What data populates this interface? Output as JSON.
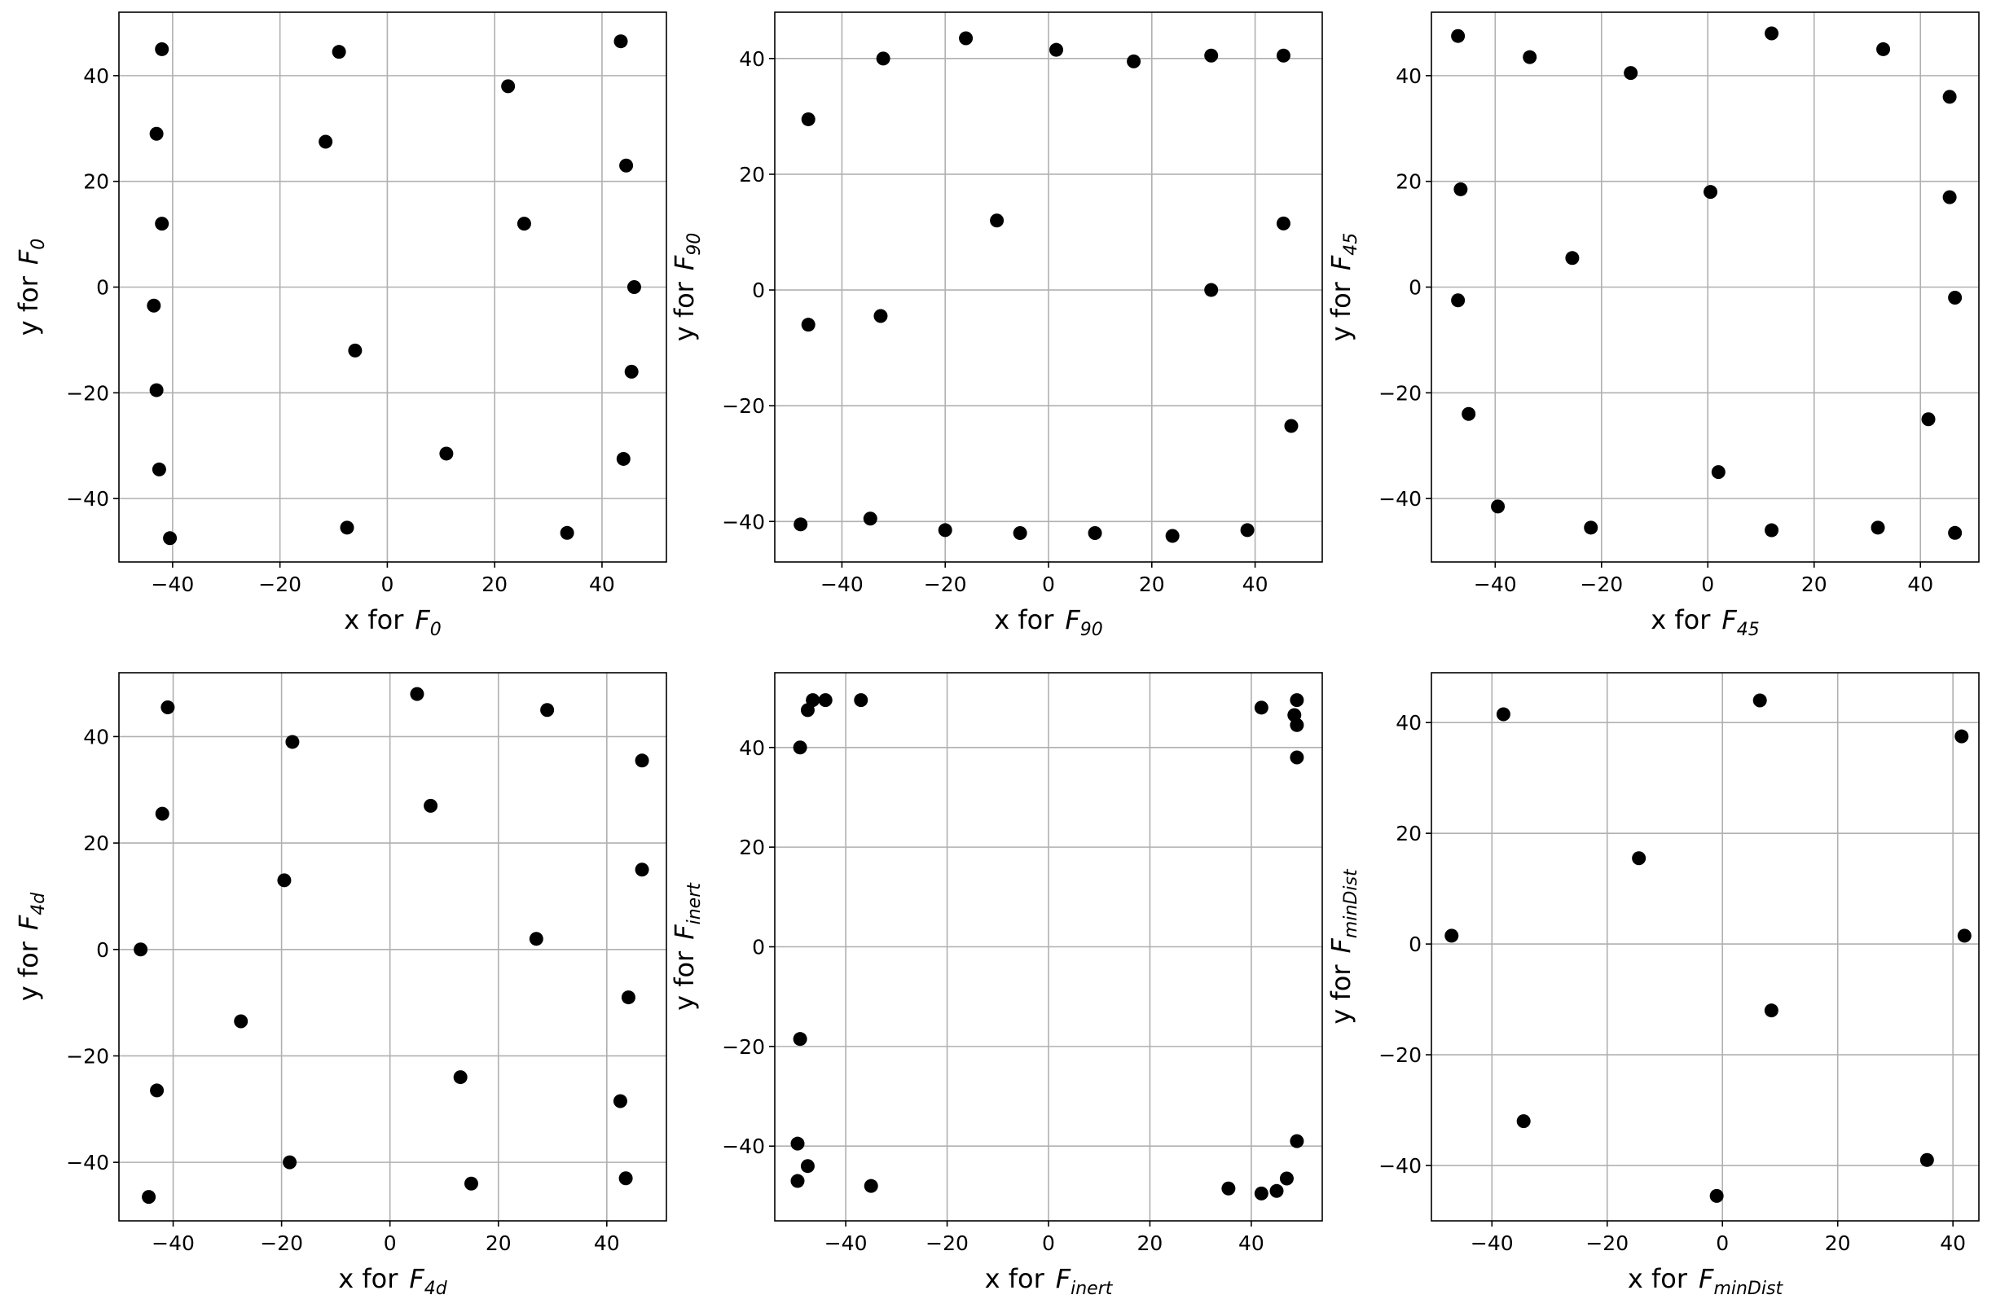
{
  "chart_data": [
    {
      "type": "scatter",
      "xlabel": {
        "text": "x for",
        "sym": "F",
        "sub": "0"
      },
      "ylabel": {
        "text": "y for",
        "sym": "F",
        "sub": "0"
      },
      "xlim": [
        -50,
        52
      ],
      "ylim": [
        -52,
        52
      ],
      "xticks": [
        -40,
        -20,
        0,
        20,
        40
      ],
      "yticks": [
        -40,
        -20,
        0,
        20,
        40
      ],
      "grid": true,
      "marker_color": "#000000",
      "points": [
        [
          -42,
          45
        ],
        [
          -9,
          44.5
        ],
        [
          43.5,
          46.5
        ],
        [
          22.5,
          38
        ],
        [
          -43,
          29
        ],
        [
          -11.5,
          27.5
        ],
        [
          44.5,
          23
        ],
        [
          -42,
          12
        ],
        [
          25.5,
          12
        ],
        [
          46,
          0
        ],
        [
          -43.5,
          -3.5
        ],
        [
          -6,
          -12
        ],
        [
          45.5,
          -16
        ],
        [
          -43,
          -19.5
        ],
        [
          11,
          -31.5
        ],
        [
          44,
          -32.5
        ],
        [
          -42.5,
          -34.5
        ],
        [
          -7.5,
          -45.5
        ],
        [
          33.5,
          -46.5
        ],
        [
          -40.5,
          -47.5
        ]
      ]
    },
    {
      "type": "scatter",
      "xlabel": {
        "text": "x for",
        "sym": "F",
        "sub": "90"
      },
      "ylabel": {
        "text": "y for",
        "sym": "F",
        "sub": "90"
      },
      "xlim": [
        -53,
        53
      ],
      "ylim": [
        -47,
        48
      ],
      "xticks": [
        -40,
        -20,
        0,
        20,
        40
      ],
      "yticks": [
        -40,
        -20,
        0,
        20,
        40
      ],
      "grid": true,
      "marker_color": "#000000",
      "points": [
        [
          -16,
          43.5
        ],
        [
          1.5,
          41.5
        ],
        [
          -32,
          40
        ],
        [
          31.5,
          40.5
        ],
        [
          45.5,
          40.5
        ],
        [
          16.5,
          39.5
        ],
        [
          -46.5,
          29.5
        ],
        [
          -10,
          12
        ],
        [
          45.5,
          11.5
        ],
        [
          31.5,
          0
        ],
        [
          -32.5,
          -4.5
        ],
        [
          -46.5,
          -6
        ],
        [
          47,
          -23.5
        ],
        [
          -34.5,
          -39.5
        ],
        [
          -48,
          -40.5
        ],
        [
          -20,
          -41.5
        ],
        [
          38.5,
          -41.5
        ],
        [
          -5.5,
          -42
        ],
        [
          9,
          -42
        ],
        [
          24,
          -42.5
        ]
      ]
    },
    {
      "type": "scatter",
      "xlabel": {
        "text": "x for",
        "sym": "F",
        "sub": "45"
      },
      "ylabel": {
        "text": "y for",
        "sym": "F",
        "sub": "45"
      },
      "xlim": [
        -52,
        51
      ],
      "ylim": [
        -52,
        52
      ],
      "xticks": [
        -40,
        -20,
        0,
        20,
        40
      ],
      "yticks": [
        -40,
        -20,
        0,
        20,
        40
      ],
      "grid": true,
      "marker_color": "#000000",
      "points": [
        [
          -47,
          47.5
        ],
        [
          12,
          48
        ],
        [
          33,
          45
        ],
        [
          -33.5,
          43.5
        ],
        [
          -14.5,
          40.5
        ],
        [
          45.5,
          36
        ],
        [
          -46.5,
          18.5
        ],
        [
          0.5,
          18
        ],
        [
          45.5,
          17
        ],
        [
          -25.5,
          5.5
        ],
        [
          -47,
          -2.5
        ],
        [
          46.5,
          -2
        ],
        [
          -45,
          -24
        ],
        [
          41.5,
          -25
        ],
        [
          2,
          -35
        ],
        [
          -39.5,
          -41.5
        ],
        [
          -22,
          -45.5
        ],
        [
          12,
          -46
        ],
        [
          32,
          -45.5
        ],
        [
          46.5,
          -46.5
        ]
      ]
    },
    {
      "type": "scatter",
      "xlabel": {
        "text": "x for",
        "sym": "F",
        "sub": "4d"
      },
      "ylabel": {
        "text": "y for",
        "sym": "F",
        "sub": "4d"
      },
      "xlim": [
        -50,
        51
      ],
      "ylim": [
        -51,
        52
      ],
      "xticks": [
        -40,
        -20,
        0,
        20,
        40
      ],
      "yticks": [
        -40,
        -20,
        0,
        20,
        40
      ],
      "grid": true,
      "marker_color": "#000000",
      "points": [
        [
          5,
          48
        ],
        [
          -41,
          45.5
        ],
        [
          29,
          45
        ],
        [
          -18,
          39
        ],
        [
          46.5,
          35.5
        ],
        [
          7.5,
          27
        ],
        [
          -42,
          25.5
        ],
        [
          46.5,
          15
        ],
        [
          -19.5,
          13
        ],
        [
          -46,
          0
        ],
        [
          27,
          2
        ],
        [
          -27.5,
          -13.5
        ],
        [
          44,
          -9
        ],
        [
          13,
          -24
        ],
        [
          -43,
          -26.5
        ],
        [
          42.5,
          -28.5
        ],
        [
          -18.5,
          -40
        ],
        [
          43.5,
          -43
        ],
        [
          15,
          -44
        ],
        [
          -44.5,
          -46.5
        ]
      ]
    },
    {
      "type": "scatter",
      "xlabel": {
        "text": "x for",
        "sym": "F",
        "sub": "inert"
      },
      "ylabel": {
        "text": "y for",
        "sym": "F",
        "sub": "inert"
      },
      "xlim": [
        -54,
        54
      ],
      "ylim": [
        -55,
        55
      ],
      "xticks": [
        -40,
        -20,
        0,
        20,
        40
      ],
      "yticks": [
        -40,
        -20,
        0,
        20,
        40
      ],
      "grid": true,
      "marker_color": "#000000",
      "points": [
        [
          -46.5,
          49.5
        ],
        [
          -44,
          49.5
        ],
        [
          -37,
          49.5
        ],
        [
          -47.5,
          47.5
        ],
        [
          -49,
          40
        ],
        [
          42,
          48
        ],
        [
          49,
          49.5
        ],
        [
          48.5,
          46.5
        ],
        [
          49,
          44.5
        ],
        [
          49,
          38
        ],
        [
          -49,
          -18.5
        ],
        [
          -49.5,
          -39.5
        ],
        [
          -47.5,
          -44
        ],
        [
          -49.5,
          -47
        ],
        [
          -35,
          -48
        ],
        [
          49,
          -39
        ],
        [
          47,
          -46.5
        ],
        [
          45,
          -49
        ],
        [
          42,
          -49.5
        ],
        [
          35.5,
          -48.5
        ]
      ]
    },
    {
      "type": "scatter",
      "xlabel": {
        "text": "x for",
        "sym": "F",
        "sub": "minDist"
      },
      "ylabel": {
        "text": "y for",
        "sym": "F",
        "sub": "minDist"
      },
      "xlim": [
        -50.5,
        44.5
      ],
      "ylim": [
        -50,
        49
      ],
      "xticks": [
        -40,
        -20,
        0,
        20,
        40
      ],
      "yticks": [
        -40,
        -20,
        0,
        20,
        40
      ],
      "grid": true,
      "marker_color": "#000000",
      "points": [
        [
          6.5,
          44
        ],
        [
          -38,
          41.5
        ],
        [
          41.5,
          37.5
        ],
        [
          -14.5,
          15.5
        ],
        [
          -47,
          1.5
        ],
        [
          42,
          1.5
        ],
        [
          8.5,
          -12
        ],
        [
          -34.5,
          -32
        ],
        [
          35.5,
          -39
        ],
        [
          -1,
          -45.5
        ]
      ]
    }
  ]
}
